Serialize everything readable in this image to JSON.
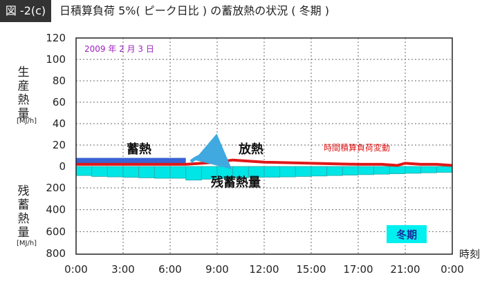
{
  "figure": {
    "label": "図 -2(c)",
    "title": "日積算負荷 5%( ピーク日比 ) の蓄放熱の状況 ( 冬期 )"
  },
  "chart_data": {
    "type": "area",
    "date_label": "2009 年 2 月 3 日",
    "season_label": "冬期",
    "y_upper": {
      "title_chars": [
        "生",
        "産",
        "熱",
        "量"
      ],
      "unit": "[MJ/h]",
      "ticks": [
        "120",
        "100",
        "80",
        "60",
        "40",
        "20",
        "0"
      ],
      "range": [
        0,
        120
      ]
    },
    "y_lower": {
      "title_chars": [
        "残",
        "蓄",
        "熱",
        "量"
      ],
      "unit": "[MJ/h]",
      "ticks": [
        "200",
        "400",
        "600",
        "800"
      ],
      "range": [
        0,
        800
      ]
    },
    "x_axis": {
      "label": "時刻",
      "ticks": [
        "0:00",
        "3:00",
        "6:00",
        "9:00",
        "12:00",
        "15:00",
        "17:00",
        "21:00",
        "0:00"
      ]
    },
    "annotations": {
      "charging": "蓄熱",
      "discharging": "放熱",
      "residual": "残蓄熱量",
      "load_line": "時間積算負荷変動"
    },
    "series": [
      {
        "name": "蓄熱",
        "color": "#3a63d4",
        "type": "band",
        "x_start": 0,
        "x_end": 7.0,
        "value": 8
      },
      {
        "name": "時間積算負荷変動",
        "color": "#e01818",
        "type": "line",
        "x": [
          0,
          3,
          6,
          7,
          8,
          9,
          10,
          11,
          12,
          15,
          18,
          19.5,
          20.5,
          21,
          22,
          23,
          24
        ],
        "values": [
          2,
          2,
          2,
          2,
          3,
          4,
          6,
          5,
          4,
          3,
          2,
          2,
          1,
          3,
          2,
          2,
          1
        ]
      },
      {
        "name": "残蓄熱量",
        "color": "#00e5e5",
        "type": "step",
        "hours": [
          0,
          1,
          2,
          3,
          4,
          5,
          6,
          7,
          8,
          9,
          10,
          11,
          12,
          13,
          14,
          15,
          16,
          17,
          18,
          19,
          20,
          21,
          22,
          23
        ],
        "values": [
          100,
          110,
          115,
          120,
          125,
          130,
          130,
          150,
          140,
          130,
          125,
          120,
          118,
          115,
          110,
          105,
          100,
          95,
          90,
          85,
          80,
          75,
          70,
          65
        ]
      }
    ]
  }
}
